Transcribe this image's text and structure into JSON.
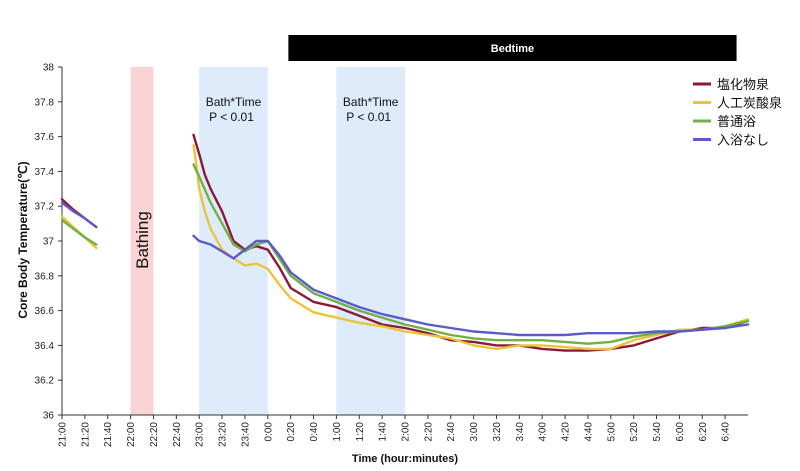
{
  "chart_data": {
    "type": "line",
    "ylabel": "Core Body Temperature(℃)",
    "xlabel": "Time (hour:minutes)",
    "ylim": [
      36,
      38
    ],
    "yticks": [
      36,
      36.2,
      36.4,
      36.6,
      36.8,
      37,
      37.2,
      37.4,
      37.6,
      37.8,
      38
    ],
    "ytick_labels": [
      "36",
      "36.2",
      "36.4",
      "36.6",
      "36.8",
      "37",
      "37.2",
      "37.4",
      "37.6",
      "37.8",
      "38"
    ],
    "xlim_minutes": [
      0,
      600
    ],
    "xtick_minutes": [
      0,
      20,
      40,
      60,
      80,
      100,
      120,
      140,
      160,
      180,
      200,
      220,
      240,
      260,
      280,
      300,
      320,
      340,
      360,
      380,
      400,
      420,
      440,
      460,
      480,
      500,
      520,
      540,
      560,
      580
    ],
    "xtick_labels": [
      "21:00",
      "21:20",
      "21:40",
      "22:00",
      "22:20",
      "22:40",
      "23:00",
      "23:20",
      "23:40",
      "0:00",
      "0:20",
      "0:40",
      "1:00",
      "1:20",
      "1:40",
      "2:00",
      "2:20",
      "2:40",
      "3:00",
      "3:20",
      "3:40",
      "4:00",
      "4:20",
      "4:40",
      "5:00",
      "5:20",
      "5:40",
      "6:00",
      "6:20",
      "6:40"
    ],
    "bands": [
      {
        "name": "bathing",
        "label": "Bathing",
        "x_start": 60,
        "x_end": 80,
        "color": "#fad4d4"
      },
      {
        "name": "bath-time-1",
        "label": "Bath*Time",
        "sublabel": "P < 0.01",
        "x_start": 120,
        "x_end": 180,
        "color": "#deebfb"
      },
      {
        "name": "bath-time-2",
        "label": "Bath*Time",
        "sublabel": "P < 0.01",
        "x_start": 240,
        "x_end": 300,
        "color": "#deebfb"
      }
    ],
    "bedtime": {
      "label": "Bedtime",
      "x_start": 198,
      "x_end": 590,
      "color": "#000000"
    },
    "series": [
      {
        "name": "塩化物泉",
        "color": "#8b1a3a",
        "segments": [
          [
            [
              0,
              37.24
            ],
            [
              10,
              37.18
            ],
            [
              20,
              37.13
            ],
            [
              30,
              37.08
            ]
          ],
          [
            [
              115,
              37.61
            ],
            [
              120,
              37.5
            ],
            [
              125,
              37.38
            ],
            [
              130,
              37.3
            ],
            [
              140,
              37.17
            ],
            [
              150,
              37.0
            ],
            [
              160,
              36.95
            ],
            [
              170,
              36.97
            ],
            [
              180,
              36.95
            ],
            [
              190,
              36.85
            ],
            [
              200,
              36.73
            ],
            [
              220,
              36.65
            ],
            [
              240,
              36.62
            ],
            [
              260,
              36.57
            ],
            [
              280,
              36.52
            ],
            [
              300,
              36.5
            ],
            [
              320,
              36.47
            ],
            [
              340,
              36.43
            ],
            [
              360,
              36.42
            ],
            [
              380,
              36.4
            ],
            [
              400,
              36.4
            ],
            [
              420,
              36.38
            ],
            [
              440,
              36.37
            ],
            [
              460,
              36.37
            ],
            [
              480,
              36.38
            ],
            [
              500,
              36.4
            ],
            [
              520,
              36.44
            ],
            [
              540,
              36.48
            ],
            [
              560,
              36.5
            ],
            [
              580,
              36.5
            ],
            [
              600,
              36.54
            ]
          ]
        ]
      },
      {
        "name": "人工炭酸泉",
        "color": "#e8c53a",
        "segments": [
          [
            [
              0,
              37.14
            ],
            [
              10,
              37.08
            ],
            [
              20,
              37.02
            ],
            [
              30,
              36.96
            ]
          ],
          [
            [
              115,
              37.55
            ],
            [
              118,
              37.42
            ],
            [
              120,
              37.3
            ],
            [
              125,
              37.17
            ],
            [
              130,
              37.07
            ],
            [
              140,
              36.95
            ],
            [
              150,
              36.9
            ],
            [
              160,
              36.86
            ],
            [
              170,
              36.87
            ],
            [
              180,
              36.84
            ],
            [
              190,
              36.75
            ],
            [
              200,
              36.67
            ],
            [
              220,
              36.59
            ],
            [
              240,
              36.56
            ],
            [
              260,
              36.53
            ],
            [
              280,
              36.51
            ],
            [
              300,
              36.48
            ],
            [
              320,
              36.46
            ],
            [
              340,
              36.44
            ],
            [
              360,
              36.4
            ],
            [
              380,
              36.38
            ],
            [
              400,
              36.4
            ],
            [
              420,
              36.4
            ],
            [
              440,
              36.39
            ],
            [
              460,
              36.38
            ],
            [
              480,
              36.38
            ],
            [
              500,
              36.43
            ],
            [
              520,
              36.46
            ],
            [
              540,
              36.49
            ],
            [
              560,
              36.49
            ],
            [
              580,
              36.51
            ],
            [
              600,
              36.55
            ]
          ]
        ]
      },
      {
        "name": "普通浴",
        "color": "#72b046",
        "segments": [
          [
            [
              0,
              37.12
            ],
            [
              10,
              37.07
            ],
            [
              20,
              37.02
            ],
            [
              30,
              36.98
            ]
          ],
          [
            [
              115,
              37.44
            ],
            [
              120,
              37.37
            ],
            [
              130,
              37.22
            ],
            [
              140,
              37.1
            ],
            [
              150,
              36.98
            ],
            [
              160,
              36.94
            ],
            [
              170,
              36.98
            ],
            [
              180,
              37.0
            ],
            [
              190,
              36.9
            ],
            [
              200,
              36.8
            ],
            [
              220,
              36.7
            ],
            [
              240,
              36.65
            ],
            [
              260,
              36.6
            ],
            [
              280,
              36.56
            ],
            [
              300,
              36.52
            ],
            [
              320,
              36.49
            ],
            [
              340,
              36.46
            ],
            [
              360,
              36.44
            ],
            [
              380,
              36.43
            ],
            [
              400,
              36.43
            ],
            [
              420,
              36.43
            ],
            [
              440,
              36.42
            ],
            [
              460,
              36.41
            ],
            [
              480,
              36.42
            ],
            [
              500,
              36.45
            ],
            [
              520,
              36.47
            ],
            [
              540,
              36.48
            ],
            [
              560,
              36.49
            ],
            [
              580,
              36.51
            ],
            [
              600,
              36.54
            ]
          ]
        ]
      },
      {
        "name": "入浴なし",
        "color": "#5c59c9",
        "segments": [
          [
            [
              0,
              37.22
            ],
            [
              10,
              37.17
            ],
            [
              20,
              37.13
            ],
            [
              30,
              37.08
            ]
          ],
          [
            [
              115,
              37.03
            ],
            [
              120,
              37.0
            ],
            [
              130,
              36.98
            ],
            [
              140,
              36.94
            ],
            [
              150,
              36.9
            ],
            [
              160,
              36.95
            ],
            [
              170,
              37.0
            ],
            [
              180,
              37.0
            ],
            [
              190,
              36.92
            ],
            [
              200,
              36.82
            ],
            [
              220,
              36.72
            ],
            [
              240,
              36.67
            ],
            [
              260,
              36.62
            ],
            [
              280,
              36.58
            ],
            [
              300,
              36.55
            ],
            [
              320,
              36.52
            ],
            [
              340,
              36.5
            ],
            [
              360,
              36.48
            ],
            [
              380,
              36.47
            ],
            [
              400,
              36.46
            ],
            [
              420,
              36.46
            ],
            [
              440,
              36.46
            ],
            [
              460,
              36.47
            ],
            [
              480,
              36.47
            ],
            [
              500,
              36.47
            ],
            [
              520,
              36.48
            ],
            [
              540,
              36.48
            ],
            [
              560,
              36.49
            ],
            [
              580,
              36.5
            ],
            [
              600,
              36.52
            ]
          ]
        ]
      }
    ],
    "legend_position": "top-right"
  }
}
